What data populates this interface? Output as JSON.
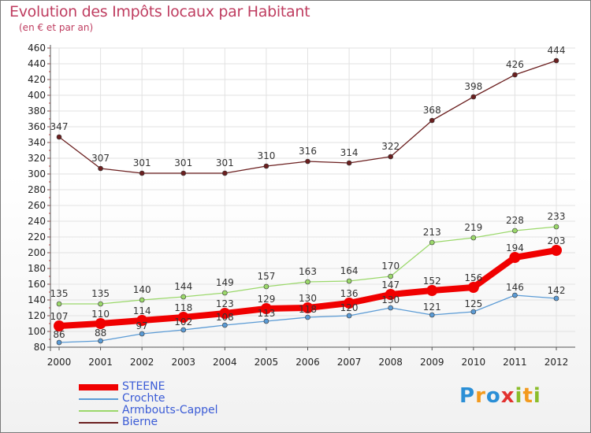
{
  "header": {
    "title": "Evolution des Impôts locaux par Habitant",
    "subtitle": "(en € et par an)"
  },
  "logo": {
    "text": "Proxiti",
    "letters": [
      {
        "ch": "P",
        "color": "#2b8fd6"
      },
      {
        "ch": "r",
        "color": "#f39a1e"
      },
      {
        "ch": "o",
        "color": "#2b8fd6"
      },
      {
        "ch": "x",
        "color": "#e2322f"
      },
      {
        "ch": "i",
        "color": "#8bbd2a"
      },
      {
        "ch": "t",
        "color": "#f39a1e"
      },
      {
        "ch": "i",
        "color": "#8bbd2a"
      }
    ]
  },
  "chart_data": {
    "type": "line",
    "title": "Evolution des Impôts locaux par Habitant",
    "subtitle": "(en € et par an)",
    "x": [
      "2000",
      "2001",
      "2002",
      "2003",
      "2004",
      "2005",
      "2006",
      "2007",
      "2008",
      "2009",
      "2010",
      "2011",
      "2012"
    ],
    "ylim": [
      80,
      460
    ],
    "yticks": [
      80,
      100,
      120,
      140,
      160,
      180,
      200,
      220,
      240,
      260,
      280,
      300,
      320,
      340,
      360,
      380,
      400,
      420,
      440,
      460
    ],
    "grid": true,
    "legend_position": "bottom-left",
    "series": [
      {
        "name": "STEENE",
        "color": "#f00000",
        "values": [
          107,
          110,
          114,
          118,
          123,
          129,
          130,
          136,
          147,
          152,
          156,
          194,
          203
        ]
      },
      {
        "name": "Crochte",
        "color": "#5b9bd5",
        "values": [
          86,
          88,
          97,
          102,
          108,
          113,
          118,
          120,
          130,
          121,
          125,
          146,
          142
        ]
      },
      {
        "name": "Armbouts-Cappel",
        "color": "#9bd86b",
        "values": [
          135,
          135,
          140,
          144,
          149,
          157,
          163,
          164,
          170,
          213,
          219,
          228,
          233
        ]
      },
      {
        "name": "Bierne",
        "color": "#6b1f1f",
        "values": [
          347,
          307,
          301,
          301,
          301,
          310,
          316,
          314,
          322,
          368,
          398,
          426,
          444
        ]
      }
    ]
  }
}
